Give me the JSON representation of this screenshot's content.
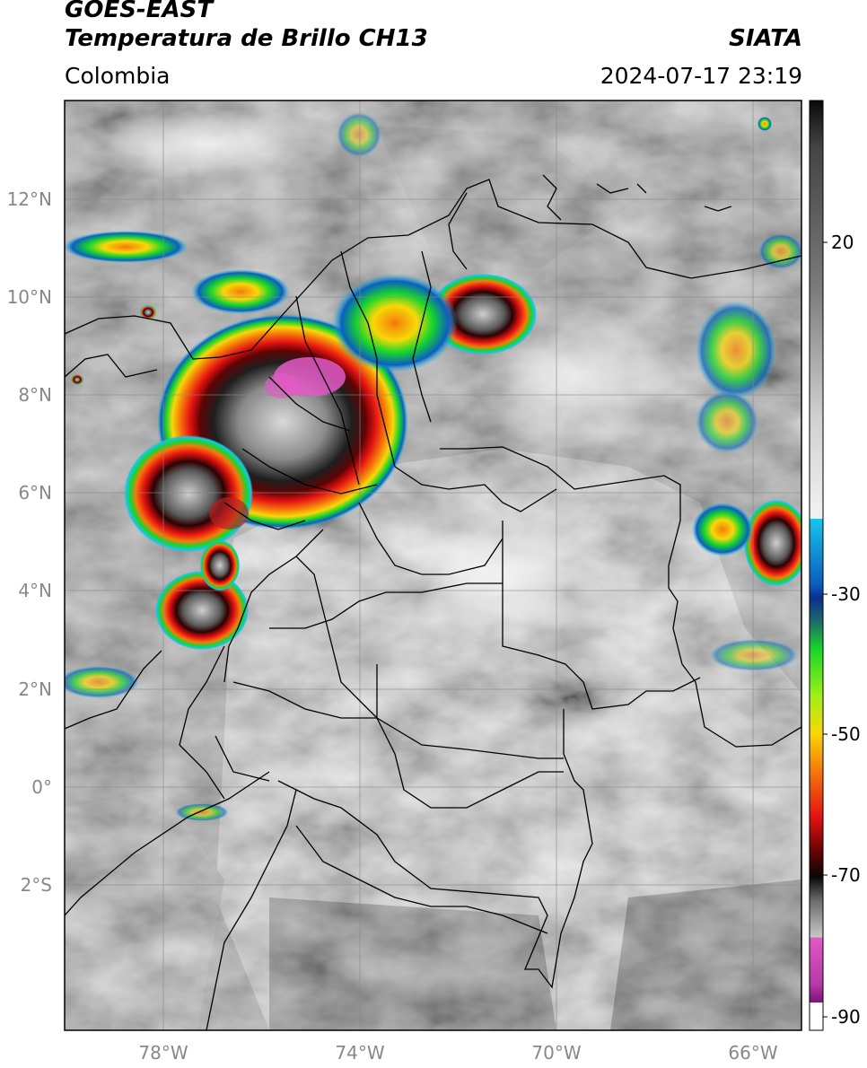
{
  "header": {
    "title_line1": "GOES-EAST",
    "title_line2": "Temperatura de Brillo CH13",
    "region": "Colombia",
    "source": "SIATA",
    "datetime": "2024-07-17 23:19"
  },
  "map": {
    "lat_labels": [
      "12°N",
      "10°N",
      "8°N",
      "6°N",
      "4°N",
      "2°N",
      "0°",
      "2°S"
    ],
    "lon_labels": [
      "78°W",
      "74°W",
      "70°W",
      "66°W"
    ]
  },
  "colorbar": {
    "labels": [
      "20",
      "-30",
      "-50",
      "-70",
      "-90"
    ],
    "colors": {
      "top": "#0a0a0a",
      "gray": "#7a7a7a",
      "white": "#f2f2f2",
      "cyan": "#19c4ea",
      "blue": "#0a2f8f",
      "green": "#17d62a",
      "yellow": "#f7d808",
      "orange": "#f57b0b",
      "red": "#e51212",
      "darkred": "#5e0303",
      "black": "#080808",
      "pink": "#e35ac6",
      "purple": "#7a157a"
    }
  }
}
